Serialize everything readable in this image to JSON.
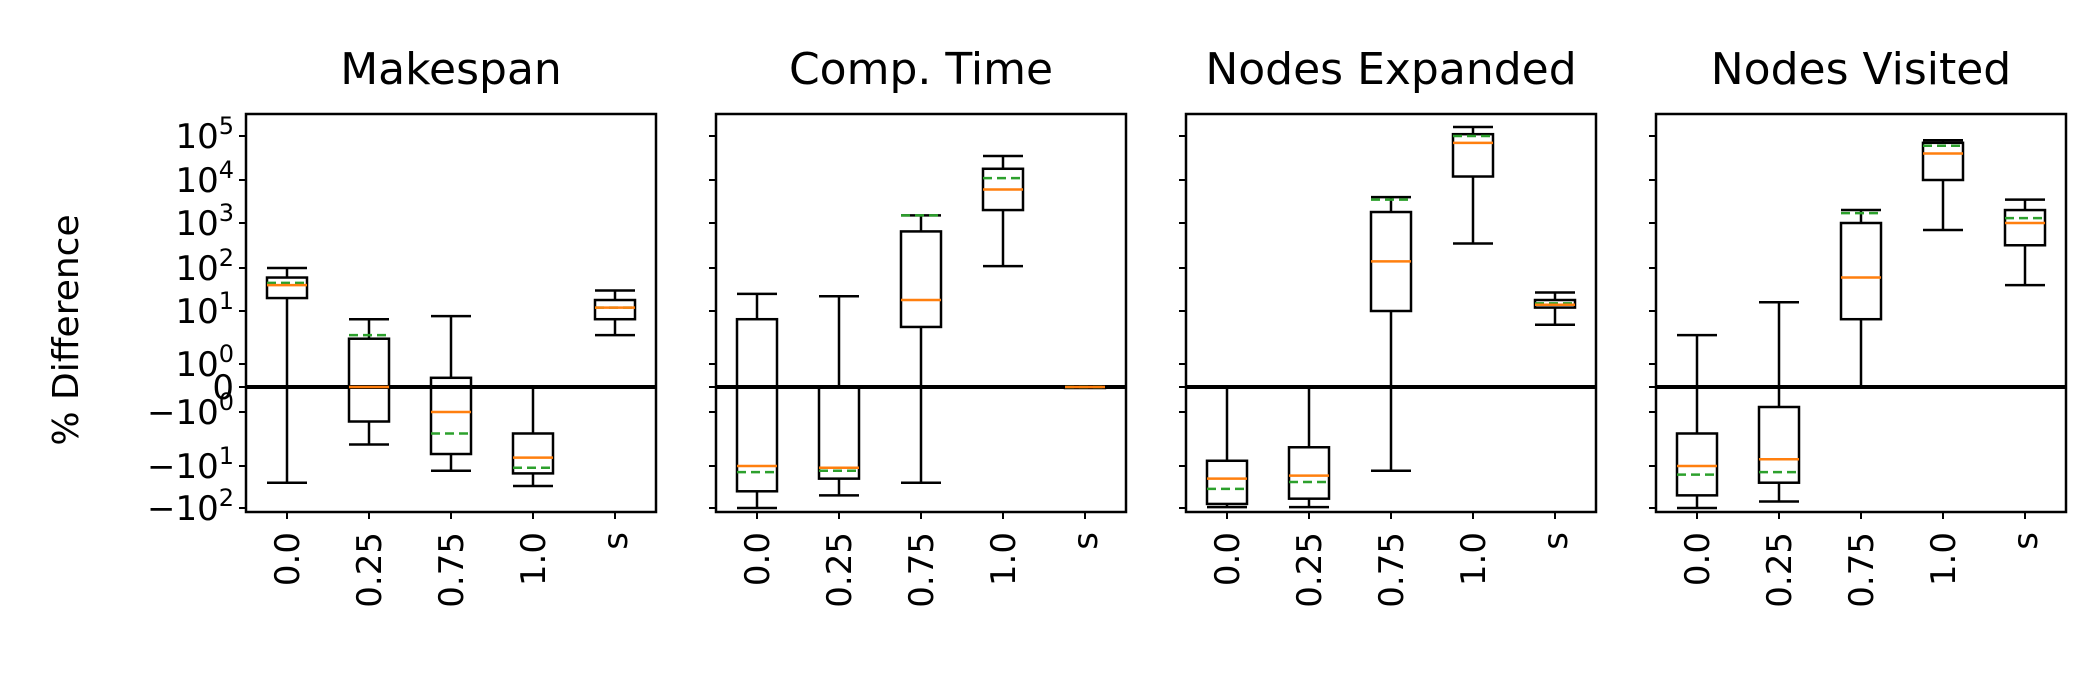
{
  "ylabel": "% Difference",
  "colors": {
    "box": "#000000",
    "median": "#ff7f0e",
    "mean": "#2ca02c",
    "zero_line": "#000000"
  },
  "y_ticks": [
    {
      "value": -100,
      "base": "−",
      "label": "−10",
      "exp": "2",
      "has_label": true
    },
    {
      "value": -10,
      "label": "−10",
      "exp": "1",
      "has_label": true
    },
    {
      "value": -1,
      "label": "−10",
      "exp": "0",
      "has_label": true
    },
    {
      "value": 0,
      "label": "0",
      "exp": "",
      "has_label": true
    },
    {
      "value": 1,
      "label": "10",
      "exp": "0",
      "has_label": true
    },
    {
      "value": 10,
      "label": "10",
      "exp": "1",
      "has_label": true
    },
    {
      "value": 100,
      "label": "10",
      "exp": "2",
      "has_label": true
    },
    {
      "value": 1000,
      "label": "10",
      "exp": "3",
      "has_label": true
    },
    {
      "value": 10000,
      "label": "10",
      "exp": "4",
      "has_label": true
    },
    {
      "value": 100000,
      "label": "10",
      "exp": "5",
      "has_label": true
    }
  ],
  "chart_data": [
    {
      "type": "box",
      "title": "Makespan",
      "yscale": "symlog",
      "categories": [
        "0.0",
        "0.25",
        "0.75",
        "1.0",
        "s"
      ],
      "boxes": [
        {
          "whislo": -25,
          "q1": 20,
          "med": 40,
          "mean": 45,
          "q3": 60,
          "whishi": 100
        },
        {
          "whislo": -4,
          "q1": -1.5,
          "med": 0,
          "mean": 3.5,
          "q3": 3,
          "whishi": 7
        },
        {
          "whislo": -13,
          "q1": -6,
          "med": -1,
          "mean": -2.5,
          "q3": 0.4,
          "whishi": 8
        },
        {
          "whislo": -30,
          "q1": -15,
          "med": -7,
          "mean": -11,
          "q3": -2.5,
          "whishi": 0
        },
        {
          "whislo": 3.5,
          "q1": 7,
          "med": 12,
          "mean": 12,
          "q3": 18,
          "whishi": 30
        }
      ]
    },
    {
      "type": "box",
      "title": "Comp. Time",
      "yscale": "symlog",
      "categories": [
        "0.0",
        "0.25",
        "0.75",
        "1.0",
        "s"
      ],
      "boxes": [
        {
          "whislo": -100,
          "q1": -40,
          "med": -10,
          "mean": -14,
          "q3": 7,
          "whishi": 25
        },
        {
          "whislo": -50,
          "q1": -20,
          "med": -11,
          "mean": -13,
          "q3": 0,
          "whishi": 22
        },
        {
          "whislo": -25,
          "q1": 5,
          "med": 18,
          "mean": 1500,
          "q3": 650,
          "whishi": 1500
        },
        {
          "whislo": 110,
          "q1": 2000,
          "med": 6000,
          "mean": 11000,
          "q3": 18000,
          "whishi": 35000
        },
        {
          "whislo": 0,
          "q1": 0,
          "med": 0,
          "mean": 0,
          "q3": 0,
          "whishi": 0
        }
      ]
    },
    {
      "type": "box",
      "title": "Nodes Expanded",
      "yscale": "symlog",
      "categories": [
        "0.0",
        "0.25",
        "0.75",
        "1.0",
        "s"
      ],
      "boxes": [
        {
          "whislo": -95,
          "q1": -80,
          "med": -20,
          "mean": -35,
          "q3": -8,
          "whishi": 0
        },
        {
          "whislo": -95,
          "q1": -60,
          "med": -17,
          "mean": -24,
          "q3": -4.5,
          "whishi": 0
        },
        {
          "whislo": -13,
          "q1": 10,
          "med": 140,
          "mean": 3500,
          "q3": 1800,
          "whishi": 4000
        },
        {
          "whislo": 350,
          "q1": 12000,
          "med": 70000,
          "mean": 100000,
          "q3": 110000,
          "whishi": 160000
        },
        {
          "whislo": 5.5,
          "q1": 12,
          "med": 14,
          "mean": 15,
          "q3": 18,
          "whishi": 27
        }
      ]
    },
    {
      "type": "box",
      "title": "Nodes Visited",
      "yscale": "symlog",
      "categories": [
        "0.0",
        "0.25",
        "0.75",
        "1.0",
        "s"
      ],
      "boxes": [
        {
          "whislo": -100,
          "q1": -50,
          "med": -10,
          "mean": -16,
          "q3": -2.5,
          "whishi": 3.5
        },
        {
          "whislo": -70,
          "q1": -25,
          "med": -7.5,
          "mean": -14,
          "q3": -0.8,
          "whishi": 16
        },
        {
          "whislo": 0,
          "q1": 7,
          "med": 60,
          "mean": 1700,
          "q3": 1000,
          "whishi": 2000
        },
        {
          "whislo": 700,
          "q1": 10000,
          "med": 40000,
          "mean": 60000,
          "q3": 70000,
          "whishi": 80000
        },
        {
          "whislo": 40,
          "q1": 320,
          "med": 1000,
          "mean": 1300,
          "q3": 2000,
          "whishi": 3500
        }
      ]
    }
  ]
}
